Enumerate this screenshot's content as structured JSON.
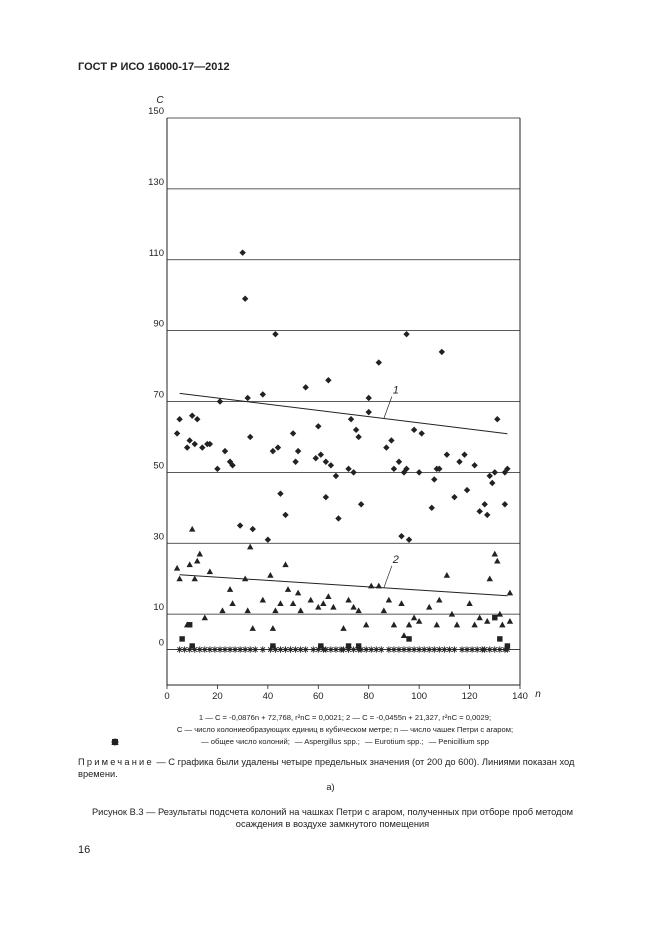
{
  "header": "ГОСТ Р ИСО 16000-17—2012",
  "chart_data": {
    "type": "scatter",
    "y_label": "C",
    "x_label": "n",
    "xlim": [
      0,
      140
    ],
    "ylim": [
      -10,
      150
    ],
    "xticks": [
      0,
      20,
      40,
      60,
      80,
      100,
      120,
      140
    ],
    "yticks": [
      0,
      10,
      30,
      50,
      70,
      90,
      110,
      130,
      150
    ],
    "grid": true,
    "series": [
      {
        "name": "— общее число колоний;",
        "marker": "diamond",
        "color": "#222222",
        "x": [
          4,
          5,
          8,
          9,
          10,
          11,
          12,
          14,
          16,
          17,
          20,
          21,
          23,
          25,
          26,
          29,
          30,
          31,
          32,
          33,
          34,
          38,
          40,
          42,
          43,
          44,
          45,
          47,
          50,
          51,
          52,
          55,
          59,
          60,
          61,
          63,
          63,
          64,
          65,
          67,
          68,
          72,
          73,
          74,
          75,
          76,
          77,
          80,
          80,
          84,
          87,
          89,
          90,
          92,
          93,
          94,
          95,
          95,
          96,
          98,
          100,
          101,
          105,
          106,
          107,
          108,
          109,
          111,
          114,
          116,
          118,
          119,
          122,
          124,
          126,
          127,
          128,
          129,
          130,
          131,
          134,
          134,
          135
        ],
        "values": [
          61,
          65,
          57,
          59,
          66,
          58,
          65,
          57,
          58,
          58,
          51,
          70,
          56,
          53,
          52,
          35,
          112,
          99,
          71,
          60,
          34,
          72,
          31,
          56,
          89,
          57,
          44,
          38,
          61,
          53,
          56,
          74,
          54,
          63,
          55,
          43,
          53,
          76,
          52,
          49,
          37,
          51,
          65,
          50,
          62,
          60,
          41,
          67,
          71,
          81,
          57,
          59,
          51,
          53,
          32,
          50,
          51,
          89,
          31,
          62,
          50,
          61,
          40,
          48,
          51,
          51,
          84,
          55,
          43,
          53,
          55,
          45,
          52,
          39,
          41,
          38,
          49,
          47,
          50,
          65,
          50,
          41,
          51
        ]
      },
      {
        "name": "— Aspergillus spp.;",
        "marker": "square",
        "color": "#222222",
        "x": [
          6,
          9,
          10,
          42,
          61,
          72,
          76,
          96,
          130,
          132,
          135
        ],
        "values": [
          3,
          7,
          1,
          1,
          1,
          1,
          1,
          3,
          9,
          3,
          1
        ]
      },
      {
        "name": "— Eurotium spp.;",
        "marker": "asterisk",
        "color": "#222222",
        "x": [
          5,
          7,
          9,
          11,
          13,
          15,
          17,
          19,
          21,
          23,
          25,
          27,
          29,
          31,
          33,
          35,
          38,
          41,
          43,
          45,
          47,
          49,
          51,
          53,
          55,
          58,
          60,
          62,
          63,
          65,
          67,
          69,
          70,
          72,
          74,
          76,
          77,
          79,
          81,
          83,
          85,
          88,
          90,
          92,
          94,
          96,
          98,
          100,
          102,
          104,
          106,
          108,
          110,
          112,
          114,
          117,
          119,
          121,
          123,
          125,
          126,
          128,
          130,
          132,
          134,
          135
        ],
        "values": [
          0,
          0,
          0,
          0,
          0,
          0,
          0,
          0,
          0,
          0,
          0,
          0,
          0,
          0,
          0,
          0,
          0,
          0,
          0,
          0,
          0,
          0,
          0,
          0,
          0,
          0,
          0,
          0,
          0,
          0,
          0,
          0,
          0,
          0,
          0,
          0,
          0,
          0,
          0,
          0,
          0,
          0,
          0,
          0,
          0,
          0,
          0,
          0,
          0,
          0,
          0,
          0,
          0,
          0,
          0,
          0,
          0,
          0,
          0,
          0,
          0,
          0,
          0,
          0,
          0,
          0
        ]
      },
      {
        "name": "— Penicillium spp",
        "marker": "triangle",
        "color": "#222222",
        "x": [
          4,
          5,
          8,
          9,
          10,
          11,
          12,
          13,
          15,
          17,
          22,
          25,
          26,
          31,
          32,
          33,
          34,
          38,
          41,
          42,
          43,
          45,
          47,
          48,
          50,
          52,
          53,
          57,
          60,
          62,
          64,
          66,
          70,
          72,
          74,
          76,
          79,
          81,
          84,
          86,
          88,
          90,
          93,
          94,
          96,
          98,
          100,
          104,
          107,
          108,
          111,
          113,
          115,
          120,
          122,
          124,
          127,
          128,
          130,
          131,
          132,
          133,
          136,
          136
        ],
        "values": [
          23,
          20,
          7,
          24,
          34,
          20,
          25,
          27,
          9,
          22,
          11,
          17,
          13,
          20,
          11,
          29,
          6,
          14,
          21,
          6,
          11,
          13,
          24,
          17,
          13,
          16,
          11,
          14,
          12,
          13,
          15,
          12,
          6,
          14,
          12,
          11,
          7,
          18,
          18,
          11,
          14,
          7,
          13,
          4,
          7,
          9,
          8,
          12,
          7,
          14,
          21,
          10,
          7,
          13,
          7,
          9,
          8,
          20,
          27,
          25,
          10,
          7,
          16,
          8
        ]
      }
    ],
    "trendlines": [
      {
        "label": "1",
        "x": [
          5,
          135
        ],
        "values": [
          72.3,
          60.9
        ]
      },
      {
        "label": "2",
        "x": [
          5,
          135
        ],
        "values": [
          21.1,
          15.2
        ]
      }
    ]
  },
  "legend_line1": "1 — C = -0,0876n + 72,768, r²nC = 0,0021; 2 — C = -0,0455n + 21,327, r²nC = 0,0029;",
  "legend_line2": "C — число колониеобразующих единиц в кубическом метре; n — число чашек Петри с агаром;",
  "note_label": "Примечание",
  "note_text": "— С графика были удалены четыре предельных значения (от 200 до 600). Линиями показан ход времени.",
  "subfigure": "а)",
  "caption": "Рисунок B.3 — Результаты подсчета колоний на чашках Петри с агаром, полученных при отборе проб методом осаждения в воздухе замкнутого помещения",
  "page_number": "16"
}
